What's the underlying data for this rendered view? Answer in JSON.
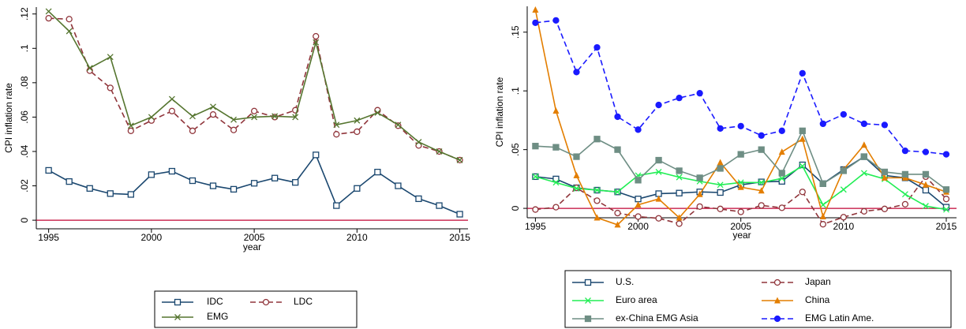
{
  "chart_data": [
    {
      "type": "line",
      "y_label": "CPI inflation rate",
      "x_label": "year",
      "x": [
        1995,
        1996,
        1997,
        1998,
        1999,
        2000,
        2001,
        2002,
        2003,
        2004,
        2005,
        2006,
        2007,
        2008,
        2009,
        2010,
        2011,
        2012,
        2013,
        2014,
        2015
      ],
      "series": [
        {
          "name": "IDC",
          "color": "#1a476f",
          "marker": "square-hollow",
          "dashed": false,
          "values": [
            0.029,
            0.0225,
            0.0185,
            0.0155,
            0.015,
            0.0265,
            0.0285,
            0.023,
            0.02,
            0.018,
            0.0215,
            0.0245,
            0.022,
            0.038,
            0.0085,
            0.0185,
            0.028,
            0.02,
            0.0125,
            0.0085,
            0.0035
          ]
        },
        {
          "name": "LDC",
          "color": "#90353b",
          "marker": "circle-hollow",
          "dashed": true,
          "values": [
            0.1175,
            0.117,
            0.087,
            0.077,
            0.052,
            0.058,
            0.0635,
            0.052,
            0.0615,
            0.0525,
            0.0635,
            0.06,
            0.064,
            0.107,
            0.05,
            0.0515,
            0.064,
            0.055,
            0.0435,
            0.04,
            0.035
          ]
        },
        {
          "name": "EMG",
          "color": "#55752f",
          "marker": "x",
          "dashed": false,
          "values": [
            0.1215,
            0.11,
            0.0885,
            0.095,
            0.055,
            0.06,
            0.0705,
            0.0605,
            0.066,
            0.0585,
            0.06,
            0.0605,
            0.06,
            0.1035,
            0.0555,
            0.058,
            0.0625,
            0.0555,
            0.0455,
            0.04,
            0.035
          ]
        }
      ],
      "xlim": [
        1994.4,
        2015.4
      ],
      "ylim": [
        -0.005,
        0.124
      ],
      "xticks": [
        1995,
        2000,
        2005,
        2010,
        2015
      ],
      "yticks": [
        0,
        {
          "value": 0.02,
          "label": ".02"
        },
        {
          "value": 0.04,
          "label": ".04"
        },
        {
          "value": 0.06,
          "label": ".06"
        },
        {
          "value": 0.08,
          "label": ".08"
        },
        {
          "value": 0.1,
          "label": ".1"
        },
        {
          "value": 0.12,
          "label": ".12"
        }
      ],
      "reference_line": {
        "y": 0,
        "color": "#c10534"
      },
      "legend": "bottom",
      "legend_columns": 2
    },
    {
      "type": "line",
      "y_label": "CPI inflation rate",
      "x_label": "year",
      "x": [
        1995,
        1996,
        1997,
        1998,
        1999,
        2000,
        2001,
        2002,
        2003,
        2004,
        2005,
        2006,
        2007,
        2008,
        2009,
        2010,
        2011,
        2012,
        2013,
        2014,
        2015
      ],
      "series": [
        {
          "name": "U.S.",
          "color": "#1a476f",
          "marker": "square-hollow",
          "dashed": false,
          "values": [
            0.027,
            0.025,
            0.0175,
            0.0155,
            0.014,
            0.008,
            0.0125,
            0.013,
            0.014,
            0.0135,
            0.02,
            0.0225,
            0.023,
            0.037,
            0.021,
            0.033,
            0.044,
            0.028,
            0.026,
            0.0155,
            0.001
          ]
        },
        {
          "name": "Japan",
          "color": "#90353b",
          "marker": "circle-hollow",
          "dashed": true,
          "values": [
            -0.001,
            0.001,
            0.0175,
            0.0065,
            -0.004,
            -0.007,
            -0.0085,
            -0.013,
            0.0015,
            -0.0005,
            -0.003,
            0.0025,
            0.0005,
            0.014,
            -0.0135,
            -0.0075,
            -0.0025,
            -0.0005,
            0.0035,
            0.027,
            0.008
          ]
        },
        {
          "name": "Euro area",
          "color": "#22ee55",
          "marker": "x",
          "dashed": false,
          "values": [
            0.027,
            0.022,
            0.017,
            0.0155,
            0.014,
            0.028,
            0.031,
            0.0265,
            0.023,
            0.02,
            0.022,
            0.022,
            0.0255,
            0.036,
            0.003,
            0.016,
            0.03,
            0.025,
            0.012,
            0.002,
            -0.001
          ]
        },
        {
          "name": "China",
          "color": "#e37e00",
          "marker": "triangle",
          "dashed": false,
          "values": [
            0.169,
            0.083,
            0.028,
            -0.008,
            -0.014,
            0.003,
            0.008,
            -0.008,
            0.012,
            0.039,
            0.018,
            0.015,
            0.048,
            0.059,
            -0.007,
            0.033,
            0.054,
            0.026,
            0.026,
            0.02,
            0.014
          ]
        },
        {
          "name": "ex-China EMG Asia",
          "color": "#6e8e84",
          "marker": "square",
          "dashed": false,
          "values": [
            0.053,
            0.052,
            0.044,
            0.059,
            0.05,
            0.024,
            0.041,
            0.032,
            0.026,
            0.034,
            0.046,
            0.05,
            0.03,
            0.066,
            0.021,
            0.032,
            0.044,
            0.031,
            0.029,
            0.029,
            0.016
          ]
        },
        {
          "name": "EMG Latin Ame.",
          "color": "#1a1aff",
          "marker": "circle",
          "dashed": true,
          "values": [
            0.158,
            0.16,
            0.116,
            0.137,
            0.078,
            0.067,
            0.088,
            0.094,
            0.098,
            0.068,
            0.07,
            0.062,
            0.066,
            0.115,
            0.072,
            0.08,
            0.072,
            0.071,
            0.049,
            0.048,
            0.046
          ]
        }
      ],
      "xlim": [
        1994.6,
        2015.5
      ],
      "ylim": [
        -0.008,
        0.172
      ],
      "xticks": [
        1995,
        2000,
        2005,
        2010,
        2015
      ],
      "yticks": [
        0,
        {
          "value": 0.05,
          "label": ".05"
        },
        {
          "value": 0.1,
          "label": ".1"
        },
        {
          "value": 0.15,
          "label": ".15"
        }
      ],
      "reference_line": {
        "y": 0,
        "color": "#c10534"
      },
      "legend": "bottom",
      "legend_columns": 2
    }
  ]
}
